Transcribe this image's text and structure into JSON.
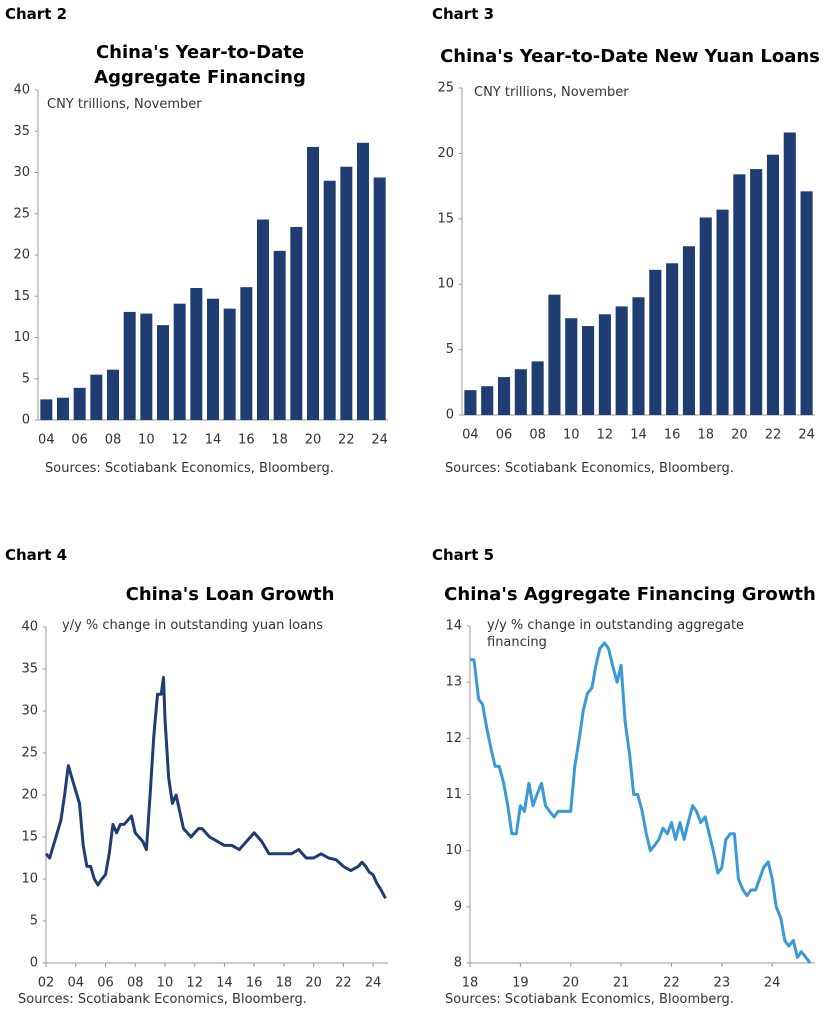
{
  "chart_data": [
    {
      "type": "bar",
      "label": "Chart 2",
      "title": "China's Year-to-Date Aggregate Financing",
      "subtitle": "CNY trillions, November",
      "source": "Sources: Scotiabank Economics, Bloomberg.",
      "categories": [
        "04",
        null,
        "06",
        null,
        "08",
        null,
        "10",
        null,
        "12",
        null,
        "14",
        null,
        "16",
        null,
        "18",
        null,
        "20",
        null,
        "22",
        null,
        "24"
      ],
      "values": [
        2.5,
        2.7,
        3.9,
        5.5,
        6.1,
        13.1,
        12.9,
        11.5,
        14.1,
        16.0,
        14.7,
        13.5,
        16.1,
        24.3,
        20.5,
        23.4,
        33.1,
        29.0,
        30.7,
        33.6,
        29.4
      ],
      "color": "#1f3d73",
      "ylim": [
        0,
        40
      ],
      "yticks": [
        0,
        5,
        10,
        15,
        20,
        25,
        30,
        35,
        40
      ]
    },
    {
      "type": "bar",
      "label": "Chart 3",
      "title": "China's Year-to-Date New Yuan Loans",
      "subtitle": "CNY trillions, November",
      "source": "Sources: Scotiabank Economics, Bloomberg.",
      "categories": [
        "04",
        null,
        "06",
        null,
        "08",
        null,
        "10",
        null,
        "12",
        null,
        "14",
        null,
        "16",
        null,
        "18",
        null,
        "20",
        null,
        "22",
        null,
        "24"
      ],
      "values": [
        1.9,
        2.2,
        2.9,
        3.5,
        4.1,
        9.2,
        7.4,
        6.8,
        7.7,
        8.3,
        9.0,
        11.1,
        11.6,
        12.9,
        15.1,
        15.7,
        18.4,
        18.8,
        19.9,
        21.6,
        17.1
      ],
      "color": "#1f3d73",
      "ylim": [
        0,
        25
      ],
      "yticks": [
        0,
        5,
        10,
        15,
        20,
        25
      ]
    },
    {
      "type": "line",
      "label": "Chart 4",
      "title": "China's  Loan Growth",
      "subtitle": "y/y % change in outstanding yuan loans",
      "source": "Sources: Scotiabank Economics, Bloomberg.",
      "x": [
        2002.0,
        2002.25,
        2002.5,
        2002.75,
        2003.0,
        2003.25,
        2003.5,
        2003.75,
        2004.0,
        2004.25,
        2004.5,
        2004.75,
        2005.0,
        2005.25,
        2005.5,
        2005.75,
        2006.0,
        2006.25,
        2006.5,
        2006.75,
        2007.0,
        2007.25,
        2007.5,
        2007.75,
        2008.0,
        2008.25,
        2008.5,
        2008.75,
        2009.0,
        2009.25,
        2009.5,
        2009.75,
        2009.9,
        2010.0,
        2010.25,
        2010.5,
        2010.75,
        2011.0,
        2011.25,
        2011.5,
        2011.75,
        2012.0,
        2012.25,
        2012.5,
        2012.75,
        2013.0,
        2013.5,
        2014.0,
        2014.5,
        2015.0,
        2015.5,
        2016.0,
        2016.5,
        2017.0,
        2017.5,
        2018.0,
        2018.5,
        2019.0,
        2019.5,
        2020.0,
        2020.5,
        2021.0,
        2021.5,
        2022.0,
        2022.5,
        2023.0,
        2023.25,
        2023.5,
        2023.75,
        2024.0,
        2024.25,
        2024.5,
        2024.83
      ],
      "values": [
        13,
        12.5,
        14,
        15.5,
        17,
        20,
        23.5,
        22,
        20.5,
        19,
        14,
        11.5,
        11.5,
        10,
        9.3,
        10,
        10.5,
        13,
        16.5,
        15.5,
        16.5,
        16.5,
        17,
        17.5,
        15.5,
        15,
        14.5,
        13.5,
        20,
        27,
        32,
        32,
        34,
        29,
        22,
        19,
        20,
        18,
        16,
        15.5,
        15,
        15.5,
        16,
        16,
        15.5,
        15,
        14.5,
        14,
        14,
        13.5,
        14.5,
        15.5,
        14.5,
        13,
        13,
        13,
        13,
        13.5,
        12.5,
        12.5,
        13,
        12.5,
        12.3,
        11.5,
        11,
        11.5,
        12,
        11.5,
        10.8,
        10.5,
        9.5,
        8.8,
        7.7
      ],
      "color": "#1f3d73",
      "xlim": [
        2002,
        2025
      ],
      "ylim": [
        0,
        40
      ],
      "xticks": [
        {
          "value": 2002,
          "label": "02"
        },
        {
          "value": 2004,
          "label": "04"
        },
        {
          "value": 2006,
          "label": "06"
        },
        {
          "value": 2008,
          "label": "08"
        },
        {
          "value": 2010,
          "label": "10"
        },
        {
          "value": 2012,
          "label": "12"
        },
        {
          "value": 2014,
          "label": "14"
        },
        {
          "value": 2016,
          "label": "16"
        },
        {
          "value": 2018,
          "label": "18"
        },
        {
          "value": 2020,
          "label": "20"
        },
        {
          "value": 2022,
          "label": "22"
        },
        {
          "value": 2024,
          "label": "24"
        }
      ],
      "yticks": [
        0,
        5,
        10,
        15,
        20,
        25,
        30,
        35,
        40
      ]
    },
    {
      "type": "line",
      "label": "Chart 5",
      "title": "China's Aggregate Financing Growth",
      "subtitle": "y/y % change in outstanding aggregate financing",
      "source": "Sources: Scotiabank Economics, Bloomberg.",
      "x": [
        2018.0,
        2018.08,
        2018.17,
        2018.25,
        2018.33,
        2018.42,
        2018.5,
        2018.58,
        2018.67,
        2018.75,
        2018.83,
        2018.92,
        2019.0,
        2019.08,
        2019.17,
        2019.25,
        2019.33,
        2019.42,
        2019.5,
        2019.58,
        2019.67,
        2019.75,
        2019.83,
        2019.92,
        2020.0,
        2020.08,
        2020.17,
        2020.25,
        2020.33,
        2020.42,
        2020.5,
        2020.58,
        2020.67,
        2020.75,
        2020.83,
        2020.92,
        2021.0,
        2021.08,
        2021.17,
        2021.25,
        2021.33,
        2021.42,
        2021.5,
        2021.58,
        2021.67,
        2021.75,
        2021.83,
        2021.92,
        2022.0,
        2022.08,
        2022.17,
        2022.25,
        2022.33,
        2022.42,
        2022.5,
        2022.58,
        2022.67,
        2022.75,
        2022.83,
        2022.92,
        2023.0,
        2023.08,
        2023.17,
        2023.25,
        2023.33,
        2023.42,
        2023.5,
        2023.58,
        2023.67,
        2023.75,
        2023.83,
        2023.92,
        2024.0,
        2024.08,
        2024.17,
        2024.25,
        2024.33,
        2024.42,
        2024.5,
        2024.58,
        2024.67,
        2024.75
      ],
      "values": [
        13.4,
        13.4,
        12.7,
        12.6,
        12.2,
        11.8,
        11.5,
        11.5,
        11.2,
        10.8,
        10.3,
        10.3,
        10.8,
        10.7,
        11.2,
        10.8,
        11.0,
        11.2,
        10.8,
        10.7,
        10.6,
        10.7,
        10.7,
        10.7,
        10.7,
        11.5,
        12.0,
        12.5,
        12.8,
        12.9,
        13.3,
        13.6,
        13.7,
        13.6,
        13.3,
        13.0,
        13.3,
        12.3,
        11.7,
        11.0,
        11.0,
        10.7,
        10.3,
        10.0,
        10.1,
        10.2,
        10.4,
        10.3,
        10.5,
        10.2,
        10.5,
        10.2,
        10.5,
        10.8,
        10.7,
        10.5,
        10.6,
        10.3,
        10.0,
        9.6,
        9.7,
        10.2,
        10.3,
        10.3,
        9.5,
        9.3,
        9.2,
        9.3,
        9.3,
        9.5,
        9.7,
        9.8,
        9.5,
        9.0,
        8.8,
        8.4,
        8.3,
        8.4,
        8.1,
        8.2,
        8.1,
        8.0
      ],
      "color": "#3a9ad6",
      "xlim": [
        2018,
        2024.85
      ],
      "ylim": [
        8,
        14
      ],
      "xticks": [
        {
          "value": 2018,
          "label": "18"
        },
        {
          "value": 2019,
          "label": "19"
        },
        {
          "value": 2020,
          "label": "20"
        },
        {
          "value": 2021,
          "label": "21"
        },
        {
          "value": 2022,
          "label": "22"
        },
        {
          "value": 2023,
          "label": "23"
        },
        {
          "value": 2024,
          "label": "24"
        }
      ],
      "yticks": [
        8,
        9,
        10,
        11,
        12,
        13,
        14
      ]
    }
  ]
}
